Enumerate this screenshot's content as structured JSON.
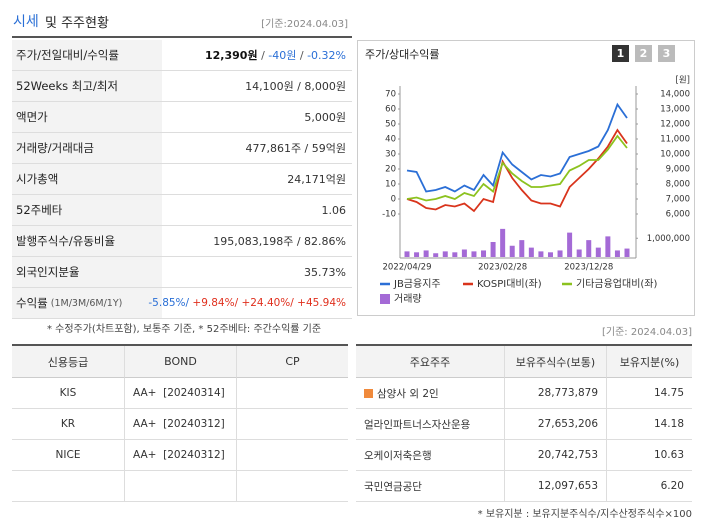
{
  "header": {
    "title_main": "시세",
    "title_rest": "및 주주현황",
    "date": "[기준:2024.04.03]"
  },
  "summary": {
    "rows": [
      {
        "label": "주가/전일대비/수익률",
        "value": [
          {
            "text": "12,390원",
            "color": "#111111",
            "bold": true
          },
          {
            "text": " / ",
            "color": "#555555"
          },
          {
            "text": "-40원",
            "color": "#2a6fd6"
          },
          {
            "text": " / ",
            "color": "#555555"
          },
          {
            "text": "-0.32%",
            "color": "#2a6fd6"
          }
        ]
      },
      {
        "label": "52Weeks 최고/최저",
        "value": [
          {
            "text": "14,100원 / 8,000원",
            "color": "#333333"
          }
        ]
      },
      {
        "label": "액면가",
        "value": [
          {
            "text": "5,000원",
            "color": "#333333"
          }
        ]
      },
      {
        "label": "거래량/거래대금",
        "value": [
          {
            "text": "477,861주 / 59억원",
            "color": "#333333"
          }
        ]
      },
      {
        "label": "시가총액",
        "value": [
          {
            "text": "24,171억원",
            "color": "#333333"
          }
        ]
      },
      {
        "label": "52주베타",
        "value": [
          {
            "text": "1.06",
            "color": "#333333"
          }
        ]
      },
      {
        "label": "발행주식수/유동비율",
        "value": [
          {
            "text": "195,083,198주 / 82.86%",
            "color": "#333333"
          }
        ]
      },
      {
        "label": "외국인지분율",
        "value": [
          {
            "text": "35.73%",
            "color": "#333333"
          }
        ]
      },
      {
        "label": "수익률",
        "sub": "(1M/3M/6M/1Y)",
        "value": [
          {
            "text": "-5.85%/",
            "color": "#2a6fd6"
          },
          {
            "text": " +9.84%/",
            "color": "#e0301e"
          },
          {
            "text": " +24.40%/",
            "color": "#e0301e"
          },
          {
            "text": " +45.94%",
            "color": "#e0301e"
          }
        ]
      }
    ],
    "note": "* 수정주가(차트포함), 보통주 기준, * 52주베타: 주간수익률 기준"
  },
  "chart_panel": {
    "tabs": [
      "1",
      "2",
      "3"
    ]
  },
  "chart_data": {
    "type": "line",
    "title": "주가/상대수익률",
    "categories": [
      "2022/04/29",
      null,
      null,
      null,
      null,
      null,
      null,
      null,
      null,
      null,
      "2023/02/28",
      null,
      null,
      null,
      null,
      null,
      null,
      null,
      null,
      "2023/12/28",
      null,
      null,
      null,
      null
    ],
    "series": [
      {
        "name": "JB금융지주",
        "color": "#2b6fd6",
        "axis": "y2",
        "values": [
          8900,
          8800,
          7500,
          7600,
          7800,
          7500,
          7900,
          7600,
          8600,
          7900,
          10100,
          9300,
          8800,
          8300,
          8600,
          8500,
          8700,
          9800,
          10000,
          10200,
          10500,
          11600,
          13300,
          12400
        ]
      },
      {
        "name": "KOSPI대비(좌)",
        "color": "#d9341c",
        "values": [
          0,
          -2,
          -6,
          -7,
          -4,
          -5,
          -3,
          -8,
          0,
          -2,
          25,
          14,
          6,
          -1,
          -3,
          -3,
          -5,
          8,
          14,
          20,
          27,
          35,
          46,
          37
        ]
      },
      {
        "name": "기타금융업대비(좌)",
        "color": "#8cc21f",
        "values": [
          0,
          1,
          -1,
          0,
          2,
          0,
          4,
          2,
          10,
          5,
          24,
          17,
          12,
          8,
          8,
          9,
          10,
          19,
          22,
          26,
          26,
          33,
          42,
          34
        ]
      },
      {
        "name": "거래량",
        "color": "#a46ad6",
        "type": "bar",
        "axis": "volume",
        "values": [
          300000,
          250000,
          350000,
          200000,
          300000,
          250000,
          400000,
          300000,
          350000,
          800000,
          1500000,
          600000,
          900000,
          500000,
          300000,
          250000,
          350000,
          1300000,
          400000,
          900000,
          500000,
          1100000,
          350000,
          450000
        ]
      }
    ],
    "ylim": [
      -10,
      70
    ],
    "yticks": [
      70,
      60,
      50,
      40,
      30,
      20,
      10,
      0,
      -10
    ],
    "y2lim": [
      6000,
      14000
    ],
    "y2_unit": "[원]",
    "y2ticks": [
      {
        "value": 14000,
        "label": "14,000"
      },
      {
        "value": 13000,
        "label": "13,000"
      },
      {
        "value": 12000,
        "label": "12,000"
      },
      {
        "value": 11000,
        "label": "11,000"
      },
      {
        "value": 10000,
        "label": "10,000"
      },
      {
        "value": 9000,
        "label": "9,000"
      },
      {
        "value": 8000,
        "label": "8,000"
      },
      {
        "value": 7000,
        "label": "7,000"
      },
      {
        "value": 6000,
        "label": "6,000"
      }
    ],
    "volume_lim": [
      0,
      1600000
    ],
    "volume_ticks": [
      {
        "value": 1000000,
        "label": "1,000,000"
      }
    ]
  },
  "ref_date": "[기준: 2024.04.03]",
  "credit_table": {
    "headers": [
      "신용등급",
      "BOND",
      "CP"
    ],
    "rows": [
      [
        "KIS",
        "AA+  [20240314]"
      ],
      [
        "KR",
        "AA+  [20240312]"
      ],
      [
        "NICE",
        "AA+  [20240312]"
      ]
    ]
  },
  "holders_table": {
    "headers": [
      "주요주주",
      "보유주식수(보통)",
      "보유지분(%)"
    ],
    "rows": [
      [
        "삼양사 외 2인",
        "28,773,879",
        "14.75"
      ],
      [
        "얼라인파트너스자산운용",
        "27,653,206",
        "14.18"
      ],
      [
        "오케이저축은행",
        "20,742,753",
        "10.63"
      ],
      [
        "국민연금공단",
        "12,097,653",
        "6.20"
      ]
    ],
    "note": "* 보유지분 : 보유지분주식수/지수산정주식수×100"
  }
}
